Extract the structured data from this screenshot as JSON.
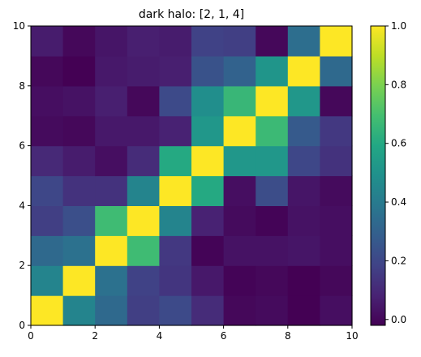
{
  "chart_data": {
    "type": "heatmap",
    "title": "dark halo: [2, 1, 4]",
    "colormap": "viridis",
    "xlim": [
      0,
      10
    ],
    "ylim": [
      0,
      10
    ],
    "x_ticks": [
      "0",
      "2",
      "4",
      "6",
      "8",
      "10"
    ],
    "y_ticks": [
      "0",
      "2",
      "4",
      "6",
      "8",
      "10"
    ],
    "colorbar": {
      "range": [
        -0.02,
        1.0
      ],
      "ticks": [
        "0.0",
        "0.2",
        "0.4",
        "0.6",
        "0.8",
        "1.0"
      ],
      "tick_values": [
        0.0,
        0.2,
        0.4,
        0.6,
        0.8,
        1.0
      ]
    },
    "grid": false,
    "values_rows_bottom_to_top": [
      [
        1.0,
        0.44,
        0.33,
        0.17,
        0.21,
        0.11,
        0.0,
        0.01,
        -0.02,
        0.02
      ],
      [
        0.44,
        1.0,
        0.36,
        0.18,
        0.14,
        0.05,
        -0.01,
        0.0,
        -0.02,
        0.0
      ],
      [
        0.33,
        0.36,
        1.0,
        0.68,
        0.15,
        -0.01,
        0.03,
        0.03,
        0.04,
        0.02
      ],
      [
        0.17,
        0.23,
        0.68,
        1.0,
        0.44,
        0.08,
        0.01,
        -0.01,
        0.03,
        0.02
      ],
      [
        0.2,
        0.13,
        0.13,
        0.44,
        1.0,
        0.6,
        0.02,
        0.22,
        0.04,
        0.01
      ],
      [
        0.1,
        0.06,
        0.02,
        0.11,
        0.6,
        1.0,
        0.52,
        0.52,
        0.2,
        0.13
      ],
      [
        0.01,
        0.0,
        0.05,
        0.05,
        0.08,
        0.52,
        1.0,
        0.67,
        0.27,
        0.15
      ],
      [
        0.02,
        0.03,
        0.07,
        0.0,
        0.21,
        0.48,
        0.66,
        1.0,
        0.52,
        0.0
      ],
      [
        0.0,
        -0.02,
        0.05,
        0.06,
        0.07,
        0.24,
        0.3,
        0.51,
        1.0,
        0.33
      ],
      [
        0.06,
        0.0,
        0.04,
        0.07,
        0.06,
        0.18,
        0.17,
        0.0,
        0.35,
        1.0
      ]
    ]
  }
}
